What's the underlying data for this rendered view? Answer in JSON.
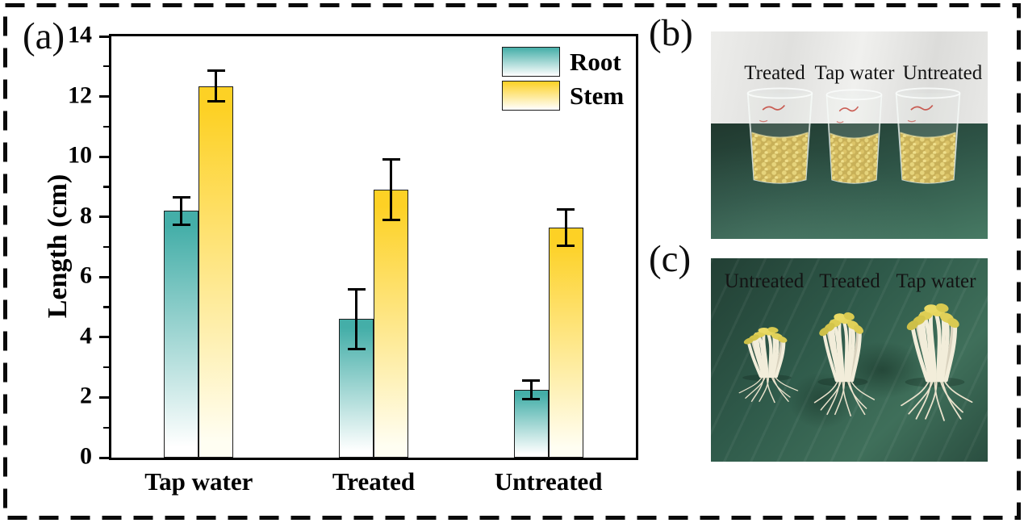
{
  "figure": {
    "border_color": "#000000",
    "panels": [
      {
        "id": "a",
        "label": "(a)"
      },
      {
        "id": "b",
        "label": "(b)"
      },
      {
        "id": "c",
        "label": "(c)"
      }
    ]
  },
  "chart_data": {
    "type": "bar",
    "title": "",
    "xlabel": "",
    "ylabel": "Length (cm)",
    "ylim": [
      0,
      14
    ],
    "yticks": [
      0,
      2,
      4,
      6,
      8,
      10,
      12,
      14
    ],
    "yticks_minor": [
      1,
      3,
      5,
      7,
      9,
      11,
      13
    ],
    "grid": false,
    "legend_position": "upper right",
    "categories": [
      "Tap water",
      "Treated",
      "Untreated"
    ],
    "series": [
      {
        "name": "Root",
        "color": "#44AEA8",
        "fade_to": "#ffffff",
        "values": [
          8.2,
          4.6,
          2.25
        ],
        "errors": [
          0.45,
          1.0,
          0.3
        ]
      },
      {
        "name": "Stem",
        "color": "#FDD125",
        "fade_to": "#fffef2",
        "values": [
          12.35,
          8.9,
          7.65
        ],
        "errors": [
          0.5,
          1.0,
          0.6
        ]
      }
    ],
    "error_bar_color": "#000000"
  },
  "photo_b": {
    "labels": [
      "Treated",
      "Tap water",
      "Untreated"
    ],
    "content": "three glass beakers of soaked soybeans on green bench, white cloth backdrop"
  },
  "photo_c": {
    "labels": [
      "Untreated",
      "Treated",
      "Tap water"
    ],
    "content": "three bundles of soybean sprouts on green bench"
  },
  "colors": {
    "bench_green": "#2d5245",
    "cloth_white": "#ebebe9",
    "seed_yellow": "#dcc468",
    "sprout_cotyledon": "#ddcd55",
    "sprout_stem": "#f2edda"
  }
}
